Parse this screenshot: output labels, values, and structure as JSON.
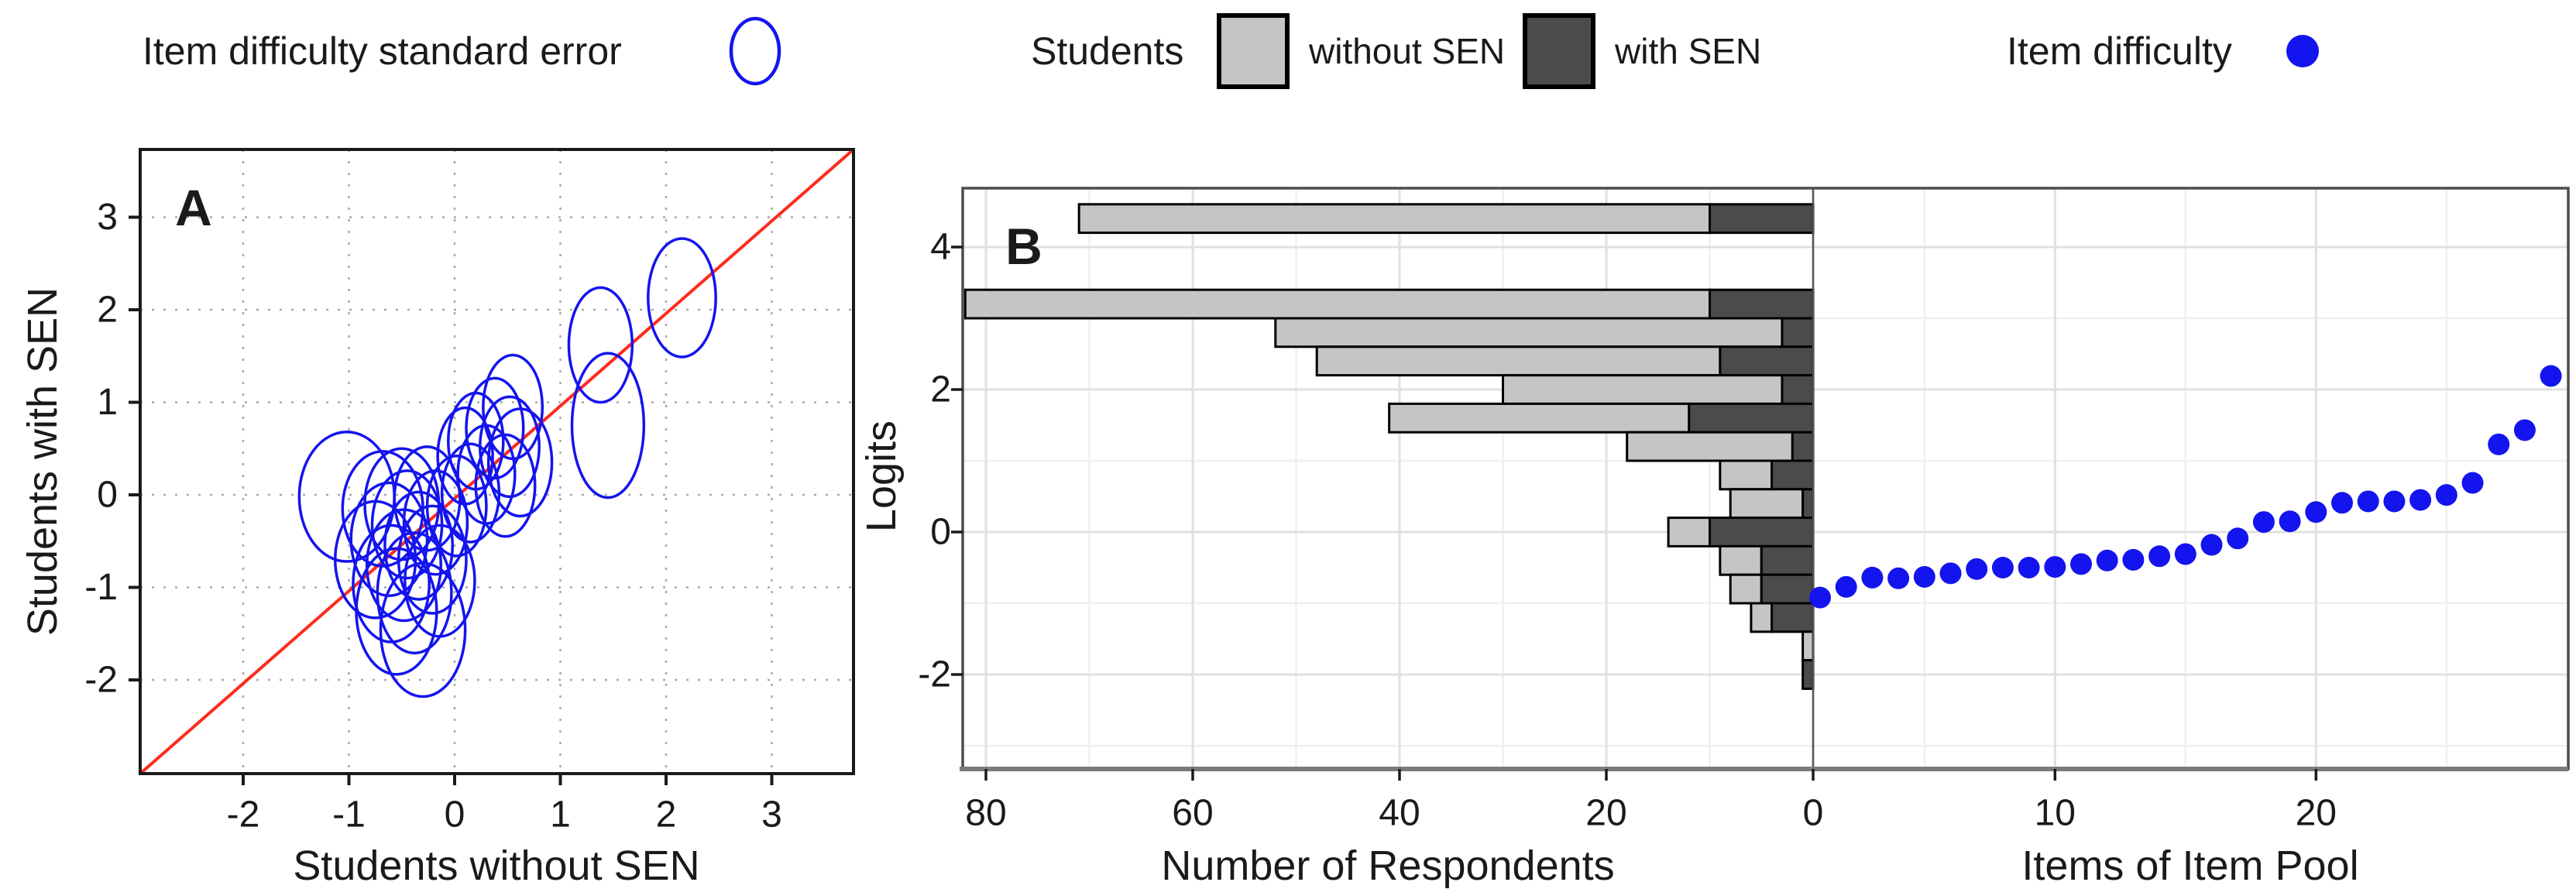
{
  "legends": {
    "ellipse_se": {
      "label": "Item difficulty standard error",
      "marker": "ellipse-outline-icon",
      "color": "#1414EE"
    },
    "students": {
      "title": "Students",
      "without_label": "without SEN",
      "with_label": "with SEN",
      "without_color": "#C5C5C5",
      "with_color": "#4B4B4B"
    },
    "item_difficulty": {
      "label": "Item difficulty",
      "marker": "filled-dot-icon",
      "color": "#1414EE"
    }
  },
  "chart_data": [
    {
      "type": "scatter",
      "panel_label": "A",
      "xlabel": "Students without SEN",
      "ylabel": "Students with SEN",
      "xlim": [
        -2.97,
        3.77
      ],
      "ylim": [
        -3.0,
        3.73
      ],
      "xticks": [
        -2,
        -1,
        0,
        1,
        2,
        3
      ],
      "yticks": [
        3,
        2,
        1,
        0,
        -1,
        -2
      ],
      "grid": "dotted",
      "legend_entry": "Item difficulty standard error",
      "identity_line": {
        "type": "y=x",
        "color": "#FF2A1E"
      },
      "marker": "ellipse-outline",
      "ellipse_color": "#1414EE",
      "ellipses_xy_rxry": [
        [
          2.15,
          2.13,
          0.32,
          0.64
        ],
        [
          1.38,
          1.62,
          0.3,
          0.62
        ],
        [
          1.45,
          0.75,
          0.34,
          0.78
        ],
        [
          0.55,
          0.95,
          0.28,
          0.56
        ],
        [
          0.38,
          0.72,
          0.27,
          0.54
        ],
        [
          0.2,
          0.58,
          0.26,
          0.52
        ],
        [
          0.52,
          0.52,
          0.28,
          0.54
        ],
        [
          0.1,
          0.42,
          0.26,
          0.52
        ],
        [
          0.62,
          0.35,
          0.3,
          0.58
        ],
        [
          0.3,
          0.22,
          0.27,
          0.53
        ],
        [
          0.48,
          0.1,
          0.28,
          0.55
        ],
        [
          0.15,
          0.02,
          0.27,
          0.53
        ],
        [
          -1.02,
          -0.02,
          0.45,
          0.7
        ],
        [
          -0.68,
          -0.15,
          0.38,
          0.62
        ],
        [
          -0.5,
          -0.1,
          0.35,
          0.6
        ],
        [
          -0.26,
          -0.04,
          0.31,
          0.56
        ],
        [
          0.02,
          -0.12,
          0.28,
          0.54
        ],
        [
          -0.45,
          -0.32,
          0.33,
          0.58
        ],
        [
          -0.18,
          -0.3,
          0.3,
          0.56
        ],
        [
          -0.62,
          -0.48,
          0.36,
          0.61
        ],
        [
          -0.34,
          -0.55,
          0.32,
          0.58
        ],
        [
          -0.75,
          -0.7,
          0.38,
          0.63
        ],
        [
          -0.48,
          -0.76,
          0.35,
          0.6
        ],
        [
          -0.21,
          -0.7,
          0.32,
          0.58
        ],
        [
          -0.6,
          -0.96,
          0.36,
          0.63
        ],
        [
          -0.38,
          -1.06,
          0.35,
          0.65
        ],
        [
          -0.14,
          -0.93,
          0.33,
          0.6
        ],
        [
          -0.55,
          -1.26,
          0.38,
          0.68
        ],
        [
          -0.3,
          -1.46,
          0.4,
          0.72
        ]
      ]
    },
    {
      "type": "bar+scatter",
      "panel_label": "B",
      "ylabel": "Logits",
      "xlabel_left": "Number of Respondents",
      "xlabel_right": "Items of Item Pool",
      "ylim": [
        -3.33,
        4.83
      ],
      "yticks": [
        4,
        2,
        0,
        -2
      ],
      "bar_orientation": "horizontal-stacked",
      "bin_width": 0.4,
      "respondent_xticks": [
        80,
        60,
        40,
        20,
        0
      ],
      "respondent_axis_reversed": true,
      "item_xticks": [
        10,
        20
      ],
      "histogram": {
        "series_names": [
          "without SEN",
          "with SEN"
        ],
        "bin_centers_logits": [
          4.4,
          3.2,
          2.8,
          2.4,
          2.0,
          1.6,
          1.2,
          0.8,
          0.4,
          0.0,
          -0.4,
          -0.8,
          -1.2,
          -1.6,
          -2.0
        ],
        "without_SEN_counts": [
          61,
          72,
          49,
          39,
          27,
          29,
          16,
          5,
          7,
          4,
          4,
          3,
          2,
          1,
          0
        ],
        "with_SEN_counts": [
          10,
          10,
          3,
          9,
          3,
          12,
          2,
          4,
          1,
          10,
          5,
          5,
          4,
          0,
          1
        ]
      },
      "item_difficulty_dots": {
        "items": [
          1,
          2,
          3,
          4,
          5,
          6,
          7,
          8,
          9,
          10,
          11,
          12,
          13,
          14,
          15,
          16,
          17,
          18,
          19,
          20,
          21,
          22,
          23,
          24,
          25,
          26,
          27,
          28,
          29
        ],
        "logits": [
          -0.92,
          -0.77,
          -0.64,
          -0.65,
          -0.63,
          -0.58,
          -0.52,
          -0.5,
          -0.5,
          -0.49,
          -0.45,
          -0.4,
          -0.39,
          -0.34,
          -0.31,
          -0.18,
          -0.09,
          0.14,
          0.15,
          0.28,
          0.41,
          0.43,
          0.43,
          0.45,
          0.52,
          0.69,
          1.23,
          1.43,
          2.19
        ]
      },
      "colors": {
        "without_SEN": "#C5C5C5",
        "with_SEN": "#4B4B4B",
        "dots": "#1414EE",
        "bar_outline": "#000000",
        "major_grid": "#E0E0E0",
        "minor_grid": "#EFEFEF",
        "frame": "#4D4D4D"
      }
    }
  ]
}
